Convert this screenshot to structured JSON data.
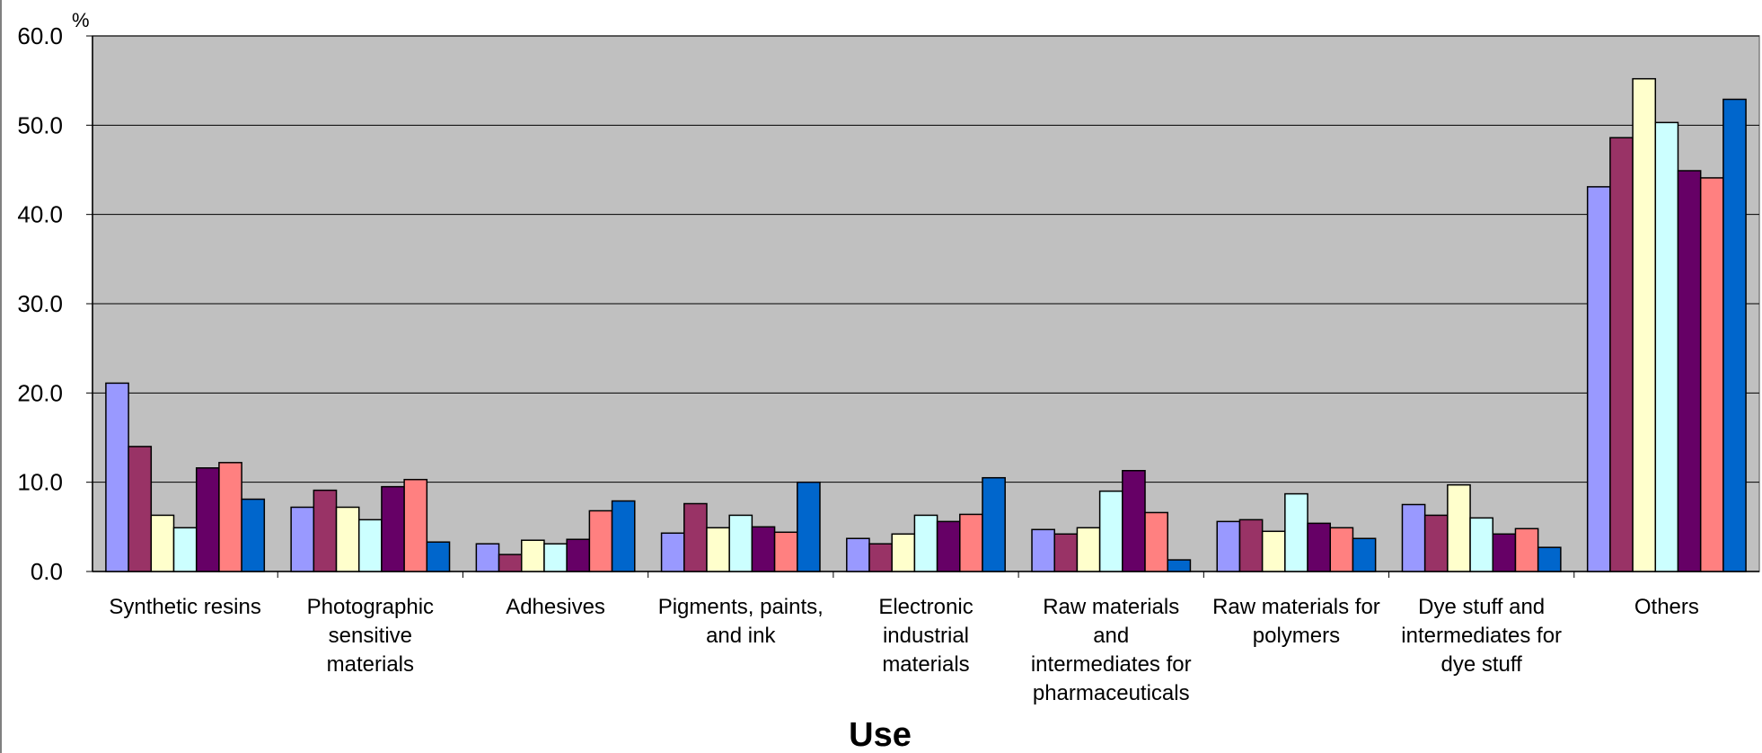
{
  "chart_data": {
    "type": "bar",
    "xlabel": "Use",
    "ylabel": "%",
    "ylim": [
      0,
      60
    ],
    "yticks": [
      "0.0",
      "10.0",
      "20.0",
      "30.0",
      "40.0",
      "50.0",
      "60.0"
    ],
    "grid": true,
    "plot_background": "#c0c0c0",
    "categories": [
      "Synthetic resins",
      "Photographic sensitive materials",
      "Adhesives",
      "Pigments, paints, and ink",
      "Electronic industrial materials",
      "Raw materials and intermediates for pharmaceuticals",
      "Raw materials for polymers",
      "Dye stuff and intermediates for dye stuff",
      "Others"
    ],
    "category_label_lines": [
      [
        "Synthetic resins"
      ],
      [
        "Photographic",
        "sensitive",
        "materials"
      ],
      [
        "Adhesives"
      ],
      [
        "Pigments, paints,",
        "and ink"
      ],
      [
        "Electronic",
        "industrial",
        "materials"
      ],
      [
        "Raw materials",
        "and",
        "intermediates for",
        "pharmaceuticals"
      ],
      [
        "Raw materials for",
        "polymers"
      ],
      [
        "Dye stuff and",
        "intermediates for",
        "dye stuff"
      ],
      [
        "Others"
      ]
    ],
    "series": [
      {
        "color": "#9999ff",
        "values": [
          21.1,
          7.2,
          3.1,
          4.3,
          3.7,
          4.7,
          5.6,
          7.5,
          43.1
        ]
      },
      {
        "color": "#993366",
        "values": [
          14.0,
          9.1,
          1.9,
          7.6,
          3.1,
          4.2,
          5.8,
          6.3,
          48.6
        ]
      },
      {
        "color": "#ffffcc",
        "values": [
          6.3,
          7.2,
          3.5,
          4.9,
          4.2,
          4.9,
          4.5,
          9.7,
          55.2
        ]
      },
      {
        "color": "#ccffff",
        "values": [
          4.9,
          5.8,
          3.1,
          6.3,
          6.3,
          9.0,
          8.7,
          6.0,
          50.3
        ]
      },
      {
        "color": "#660066",
        "values": [
          11.6,
          9.5,
          3.6,
          5.0,
          5.6,
          11.3,
          5.4,
          4.2,
          44.9
        ]
      },
      {
        "color": "#ff8080",
        "values": [
          12.2,
          10.3,
          6.8,
          4.4,
          6.4,
          6.6,
          4.9,
          4.8,
          44.1
        ]
      },
      {
        "color": "#0066cc",
        "values": [
          8.1,
          3.3,
          7.9,
          10.0,
          10.5,
          1.3,
          3.7,
          2.7,
          52.9
        ]
      }
    ]
  }
}
